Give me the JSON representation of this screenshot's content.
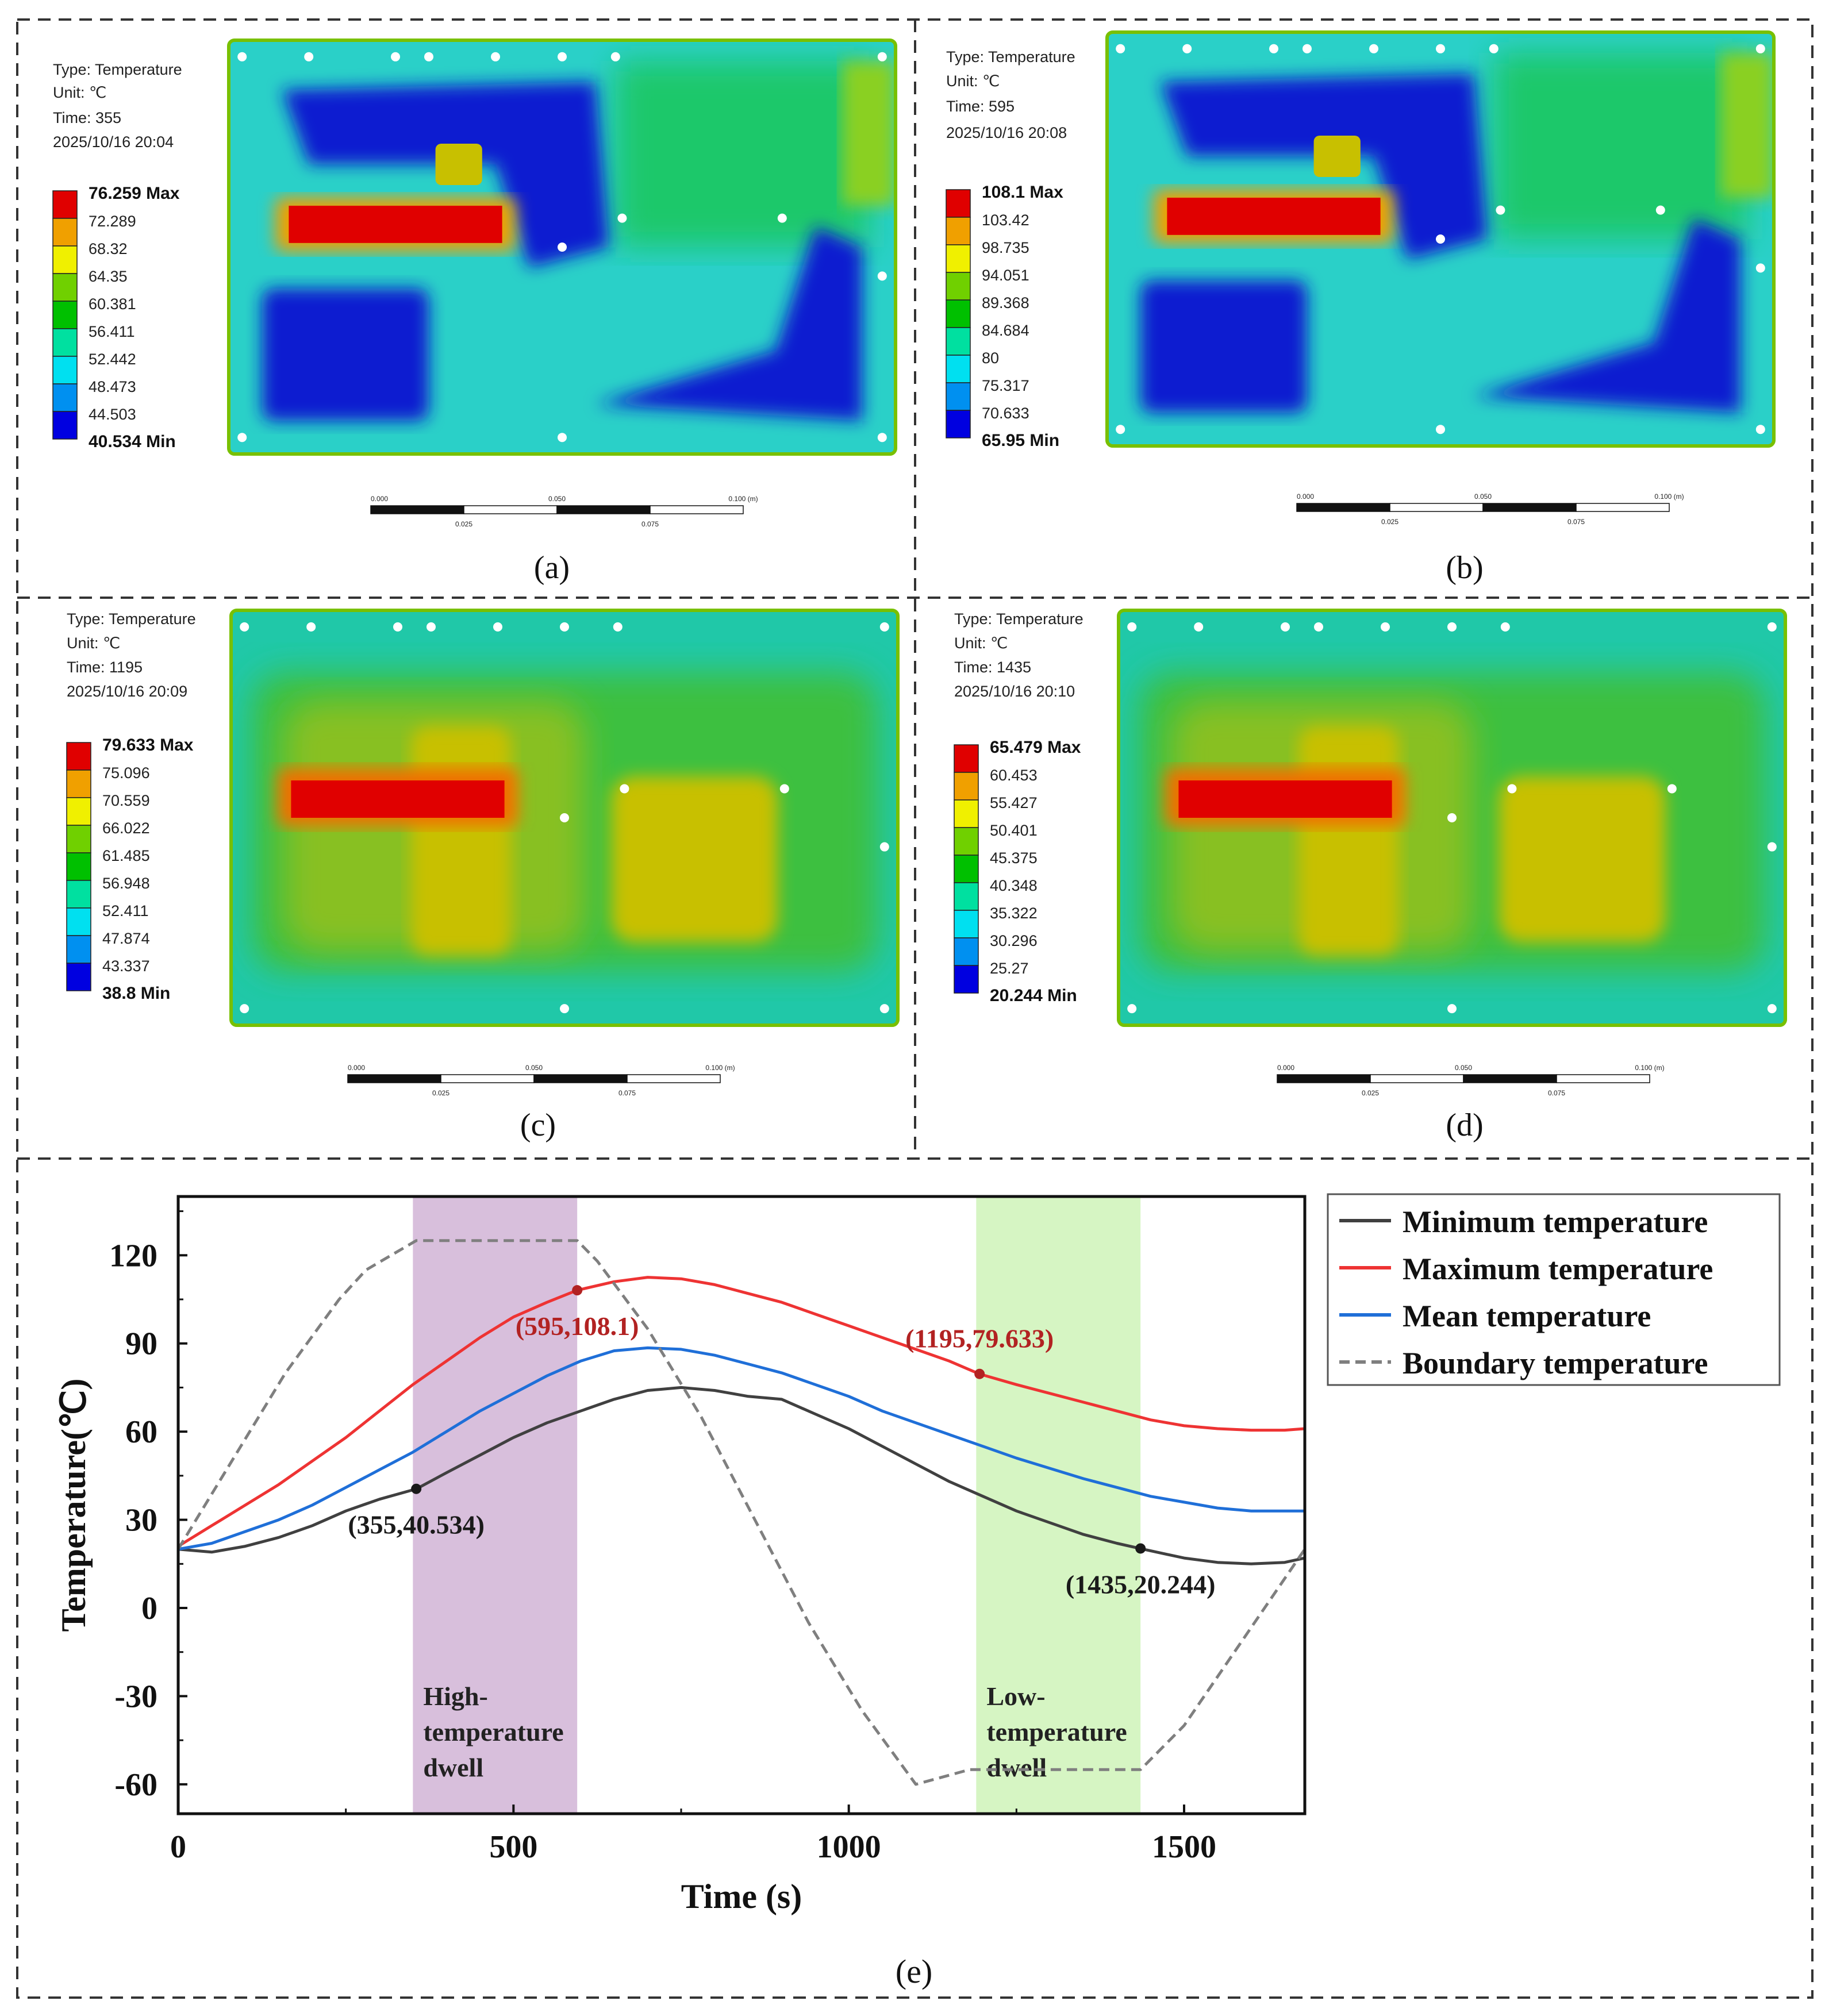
{
  "panels": [
    {
      "letter": "(a)",
      "info": [
        "Type: Temperature",
        "Unit: ℃",
        "Time: 355",
        "2025/10/16 20:04"
      ],
      "max_label": "76.259 Max",
      "min_label": "40.534 Min",
      "legend_values": [
        "72.289",
        "68.32",
        "64.35",
        "60.381",
        "56.411",
        "52.442",
        "48.473",
        "44.503"
      ]
    },
    {
      "letter": "(b)",
      "info": [
        "Type: Temperature",
        "Unit: ℃",
        "Time: 595",
        "2025/10/16 20:08"
      ],
      "max_label": "108.1 Max",
      "min_label": "65.95 Min",
      "legend_values": [
        "103.42",
        "98.735",
        "94.051",
        "89.368",
        "84.684",
        "80",
        "75.317",
        "70.633"
      ]
    },
    {
      "letter": "(c)",
      "info": [
        "Type: Temperature",
        "Unit: ℃",
        "Time: 1195",
        "2025/10/16 20:09"
      ],
      "max_label": "79.633 Max",
      "min_label": "38.8 Min",
      "legend_values": [
        "75.096",
        "70.559",
        "66.022",
        "61.485",
        "56.948",
        "52.411",
        "47.874",
        "43.337"
      ]
    },
    {
      "letter": "(d)",
      "info": [
        "Type: Temperature",
        "Unit: ℃",
        "Time: 1435",
        "2025/10/16 20:10"
      ],
      "max_label": "65.479 Max",
      "min_label": "20.244 Min",
      "legend_values": [
        "60.453",
        "55.427",
        "50.401",
        "45.375",
        "40.348",
        "35.322",
        "30.296",
        "25.27"
      ]
    }
  ],
  "scale_bar": {
    "top_labels": [
      "0.000",
      "0.050",
      "0.100 (m)"
    ],
    "bottom_labels": [
      "0.025",
      "0.075"
    ]
  },
  "legend_colors": [
    "#e00000",
    "#f0a000",
    "#f0f000",
    "#70d000",
    "#00c000",
    "#00e0a0",
    "#00e0f0",
    "#0090f0",
    "#0000e0"
  ],
  "chart_data": {
    "type": "line",
    "panel_letter": "(e)",
    "xlabel": "Time (s)",
    "ylabel": "Temperature(℃)",
    "xlim": [
      0,
      1680
    ],
    "ylim": [
      -70,
      140
    ],
    "xticks": [
      0,
      500,
      1000,
      1500
    ],
    "yticks": [
      -60,
      -30,
      0,
      30,
      60,
      90,
      120
    ],
    "series": [
      {
        "name": "Minimum temperature",
        "color": "#404040",
        "dash": false,
        "points": [
          [
            0,
            20
          ],
          [
            50,
            19
          ],
          [
            100,
            21
          ],
          [
            150,
            24
          ],
          [
            200,
            28
          ],
          [
            250,
            33
          ],
          [
            300,
            37
          ],
          [
            355,
            40.5
          ],
          [
            400,
            46
          ],
          [
            450,
            52
          ],
          [
            500,
            58
          ],
          [
            550,
            63
          ],
          [
            600,
            67
          ],
          [
            650,
            71
          ],
          [
            700,
            74
          ],
          [
            750,
            75
          ],
          [
            800,
            74
          ],
          [
            850,
            72
          ],
          [
            900,
            71
          ],
          [
            950,
            66
          ],
          [
            1000,
            61
          ],
          [
            1050,
            55
          ],
          [
            1100,
            49
          ],
          [
            1150,
            43
          ],
          [
            1200,
            38
          ],
          [
            1250,
            33
          ],
          [
            1300,
            29
          ],
          [
            1350,
            25
          ],
          [
            1400,
            22
          ],
          [
            1435,
            20.2
          ],
          [
            1500,
            17
          ],
          [
            1550,
            15.5
          ],
          [
            1600,
            15
          ],
          [
            1650,
            15.5
          ],
          [
            1680,
            17
          ]
        ]
      },
      {
        "name": "Maximum temperature",
        "color": "#ee3333",
        "dash": false,
        "points": [
          [
            0,
            21
          ],
          [
            50,
            28
          ],
          [
            100,
            35
          ],
          [
            150,
            42
          ],
          [
            200,
            50
          ],
          [
            250,
            58
          ],
          [
            300,
            67
          ],
          [
            350,
            76
          ],
          [
            400,
            84
          ],
          [
            450,
            92
          ],
          [
            500,
            99
          ],
          [
            550,
            104
          ],
          [
            595,
            108.1
          ],
          [
            650,
            111
          ],
          [
            700,
            112.5
          ],
          [
            750,
            112
          ],
          [
            800,
            110
          ],
          [
            850,
            107
          ],
          [
            900,
            104
          ],
          [
            950,
            100
          ],
          [
            1000,
            96
          ],
          [
            1050,
            92
          ],
          [
            1100,
            88
          ],
          [
            1150,
            84
          ],
          [
            1195,
            79.6
          ],
          [
            1250,
            76
          ],
          [
            1300,
            73
          ],
          [
            1350,
            70
          ],
          [
            1400,
            67
          ],
          [
            1450,
            64
          ],
          [
            1500,
            62
          ],
          [
            1550,
            61
          ],
          [
            1600,
            60.5
          ],
          [
            1650,
            60.5
          ],
          [
            1680,
            61
          ]
        ]
      },
      {
        "name": "Mean temperature",
        "color": "#1f6fd8",
        "dash": false,
        "points": [
          [
            0,
            20
          ],
          [
            50,
            22
          ],
          [
            100,
            26
          ],
          [
            150,
            30
          ],
          [
            200,
            35
          ],
          [
            250,
            41
          ],
          [
            300,
            47
          ],
          [
            350,
            53
          ],
          [
            400,
            60
          ],
          [
            450,
            67
          ],
          [
            500,
            73
          ],
          [
            550,
            79
          ],
          [
            600,
            84
          ],
          [
            650,
            87.5
          ],
          [
            700,
            88.5
          ],
          [
            750,
            88
          ],
          [
            800,
            86
          ],
          [
            850,
            83
          ],
          [
            900,
            80
          ],
          [
            950,
            76
          ],
          [
            1000,
            72
          ],
          [
            1050,
            67
          ],
          [
            1100,
            63
          ],
          [
            1150,
            59
          ],
          [
            1200,
            55
          ],
          [
            1250,
            51
          ],
          [
            1300,
            47.5
          ],
          [
            1350,
            44
          ],
          [
            1400,
            41
          ],
          [
            1450,
            38
          ],
          [
            1500,
            36
          ],
          [
            1550,
            34
          ],
          [
            1600,
            33
          ],
          [
            1650,
            33
          ],
          [
            1680,
            33
          ]
        ]
      },
      {
        "name": "Boundary temperature",
        "color": "#7f7f7f",
        "dash": true,
        "points": [
          [
            0,
            20
          ],
          [
            80,
            50
          ],
          [
            160,
            80
          ],
          [
            240,
            105
          ],
          [
            280,
            115
          ],
          [
            355,
            125
          ],
          [
            595,
            125
          ],
          [
            625,
            118
          ],
          [
            700,
            95
          ],
          [
            780,
            65
          ],
          [
            860,
            30
          ],
          [
            940,
            -5
          ],
          [
            1020,
            -35
          ],
          [
            1100,
            -60
          ],
          [
            1180,
            -55
          ],
          [
            1260,
            -55
          ],
          [
            1435,
            -55
          ],
          [
            1500,
            -40
          ],
          [
            1560,
            -20
          ],
          [
            1620,
            0
          ],
          [
            1680,
            20
          ]
        ]
      }
    ],
    "markers": [
      {
        "series": "Minimum temperature",
        "x": 355,
        "y": 40.534,
        "label": "(355,40.534)",
        "color": "#1a1a1a",
        "label_pos": "below"
      },
      {
        "series": "Maximum temperature",
        "x": 595,
        "y": 108.1,
        "label": "(595,108.1)",
        "color": "#b22222",
        "label_pos": "below"
      },
      {
        "series": "Maximum temperature",
        "x": 1195,
        "y": 79.633,
        "label": "(1195,79.633)",
        "color": "#b22222",
        "label_pos": "above"
      },
      {
        "series": "Minimum temperature",
        "x": 1435,
        "y": 20.244,
        "label": "(1435,20.244)",
        "color": "#1a1a1a",
        "label_pos": "below"
      }
    ],
    "bands": [
      {
        "x0": 350,
        "x1": 595,
        "color": "#d8bfdc",
        "label": [
          "High-",
          "temperature",
          "dwell"
        ]
      },
      {
        "x0": 1190,
        "x1": 1435,
        "color": "#d6f5c3",
        "label": [
          "Low-",
          "temperature",
          "dwell"
        ]
      }
    ]
  }
}
